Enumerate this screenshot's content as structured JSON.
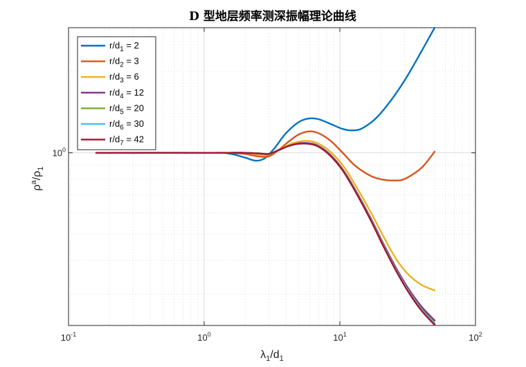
{
  "chart_data": {
    "type": "line",
    "title": "D 型地层频率测深振幅理论曲线",
    "xlabel": {
      "main": "λ",
      "sub": "1",
      "rest": "/d",
      "sub2": "1"
    },
    "ylabel": {
      "main": "ρ",
      "sup": "a",
      "rest": "/ρ",
      "sub": "1"
    },
    "x_scale": "log",
    "y_scale": "log",
    "xlim": [
      0.1,
      100
    ],
    "ylim": [
      0.23,
      2.9
    ],
    "x_ticks": [
      {
        "value": 0.1,
        "base": "10",
        "exp": "-1"
      },
      {
        "value": 1,
        "base": "10",
        "exp": "0"
      },
      {
        "value": 10,
        "base": "10",
        "exp": "1"
      },
      {
        "value": 100,
        "base": "10",
        "exp": "2"
      }
    ],
    "y_ticks": [
      {
        "value": 1.0,
        "base": "10",
        "exp": "0"
      }
    ],
    "grid": true,
    "legend_position": "top-left",
    "series": [
      {
        "name": "r/d",
        "sub": "1",
        "suffix": " = 2",
        "color": "#0072BD",
        "x": [
          0.16,
          1.0,
          1.5,
          2.0,
          2.4,
          2.8,
          3.3,
          4.0,
          5.0,
          6.0,
          7.0,
          8.5,
          10.5,
          12.5,
          15.0,
          20.0,
          30.0,
          50.0
        ],
        "y": [
          1.0,
          1.0,
          0.995,
          0.96,
          0.935,
          0.955,
          1.04,
          1.18,
          1.3,
          1.34,
          1.33,
          1.28,
          1.225,
          1.21,
          1.24,
          1.4,
          1.85,
          2.9
        ]
      },
      {
        "name": "r/d",
        "sub": "2",
        "suffix": " = 3",
        "color": "#D95319",
        "x": [
          0.16,
          1.0,
          1.5,
          2.0,
          2.5,
          3.0,
          3.5,
          4.2,
          5.0,
          6.0,
          7.0,
          8.5,
          10.5,
          13.0,
          17.0,
          21.0,
          25.0,
          30.0,
          40.0,
          50.0
        ],
        "y": [
          1.0,
          1.0,
          1.0,
          0.99,
          0.97,
          0.97,
          1.02,
          1.1,
          1.17,
          1.2,
          1.18,
          1.11,
          1.0,
          0.895,
          0.82,
          0.795,
          0.79,
          0.8,
          0.88,
          1.01
        ]
      },
      {
        "name": "r/d",
        "sub": "3",
        "suffix": " = 6",
        "color": "#EDB120",
        "x": [
          0.16,
          1.0,
          1.5,
          2.0,
          2.5,
          3.0,
          3.5,
          4.2,
          5.0,
          6.0,
          7.0,
          8.5,
          10.5,
          13.0,
          17.0,
          21.0,
          26.0,
          32.0,
          40.0,
          50.0
        ],
        "y": [
          1.0,
          1.0,
          1.0,
          1.0,
          0.985,
          0.985,
          1.02,
          1.07,
          1.1,
          1.105,
          1.08,
          1.01,
          0.9,
          0.76,
          0.6,
          0.49,
          0.405,
          0.355,
          0.325,
          0.31
        ]
      },
      {
        "name": "r/d",
        "sub": "4",
        "suffix": " = 12",
        "color": "#7E2F8E",
        "x": [
          0.16,
          1.0,
          1.5,
          2.0,
          2.5,
          3.0,
          3.5,
          4.2,
          5.0,
          6.0,
          7.0,
          8.5,
          10.5,
          13.0,
          17.0,
          21.0,
          26.0,
          32.0,
          40.0,
          50.0
        ],
        "y": [
          1.0,
          1.0,
          1.0,
          1.0,
          0.995,
          0.99,
          1.02,
          1.06,
          1.085,
          1.085,
          1.06,
          0.985,
          0.87,
          0.73,
          0.57,
          0.46,
          0.375,
          0.315,
          0.27,
          0.24
        ]
      },
      {
        "name": "r/d",
        "sub": "5",
        "suffix": " = 20",
        "color": "#77AC30",
        "x": [
          0.16,
          1.0,
          1.5,
          2.0,
          2.5,
          3.0,
          3.5,
          4.2,
          5.0,
          6.0,
          7.0,
          8.5,
          10.5,
          13.0,
          17.0,
          21.0,
          26.0,
          32.0,
          40.0,
          50.0
        ],
        "y": [
          1.0,
          1.0,
          1.0,
          1.0,
          0.995,
          0.99,
          1.02,
          1.06,
          1.082,
          1.082,
          1.056,
          0.98,
          0.865,
          0.725,
          0.565,
          0.455,
          0.37,
          0.31,
          0.265,
          0.235
        ]
      },
      {
        "name": "r/d",
        "sub": "6",
        "suffix": " = 30",
        "color": "#4DBEEE",
        "x": [
          0.16,
          1.0,
          1.5,
          2.0,
          2.5,
          3.0,
          3.5,
          4.2,
          5.0,
          6.0,
          7.0,
          8.5,
          10.5,
          13.0,
          17.0,
          21.0,
          26.0,
          32.0,
          40.0,
          50.0
        ],
        "y": [
          1.0,
          1.0,
          1.0,
          1.0,
          0.995,
          0.99,
          1.02,
          1.06,
          1.08,
          1.08,
          1.054,
          0.978,
          0.862,
          0.722,
          0.562,
          0.452,
          0.368,
          0.308,
          0.263,
          0.233
        ]
      },
      {
        "name": "r/d",
        "sub": "7",
        "suffix": " = 42",
        "color": "#A2142F",
        "x": [
          0.16,
          1.0,
          1.5,
          2.0,
          2.5,
          3.0,
          3.5,
          4.2,
          5.0,
          6.0,
          7.0,
          8.5,
          10.5,
          13.0,
          17.0,
          21.0,
          26.0,
          32.0,
          40.0,
          50.0
        ],
        "y": [
          1.0,
          1.0,
          1.0,
          1.0,
          0.995,
          0.99,
          1.02,
          1.06,
          1.08,
          1.078,
          1.052,
          0.976,
          0.86,
          0.72,
          0.56,
          0.45,
          0.366,
          0.306,
          0.261,
          0.231
        ]
      }
    ]
  }
}
